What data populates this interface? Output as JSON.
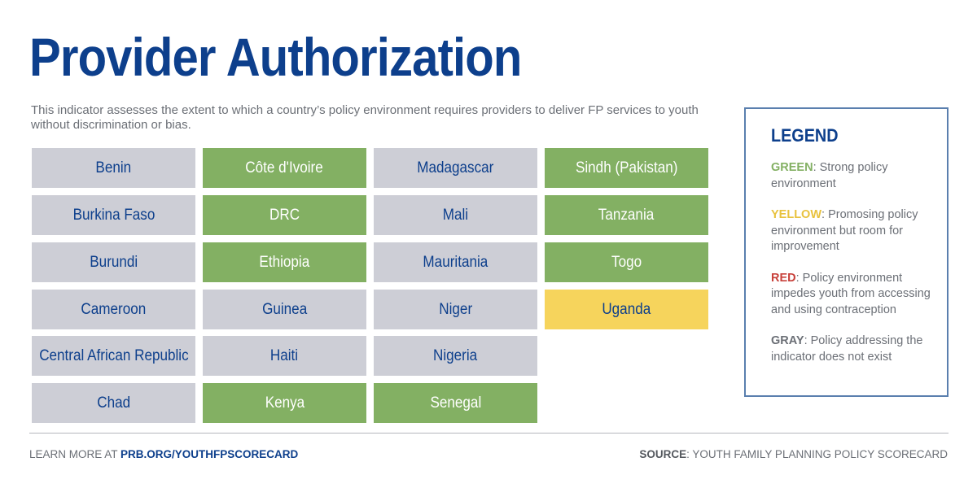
{
  "title": "Provider Authorization",
  "description": "This indicator assesses the extent to which a country’s policy environment requires providers to deliver FP services to youth without discrimination or bias.",
  "colors": {
    "green": "#83b063",
    "yellow": "#f6d45c",
    "gray": "#cdced6",
    "navy": "#0d3f8c",
    "red_label": "#c8413b"
  },
  "countries": {
    "col1": [
      {
        "name": "Benin",
        "status": "gray"
      },
      {
        "name": "Burkina Faso",
        "status": "gray"
      },
      {
        "name": "Burundi",
        "status": "gray"
      },
      {
        "name": "Cameroon",
        "status": "gray"
      },
      {
        "name": "Central African Republic",
        "status": "gray"
      },
      {
        "name": "Chad",
        "status": "gray"
      }
    ],
    "col2": [
      {
        "name": "Côte d'Ivoire",
        "status": "green"
      },
      {
        "name": "DRC",
        "status": "green"
      },
      {
        "name": "Ethiopia",
        "status": "green"
      },
      {
        "name": "Guinea",
        "status": "gray"
      },
      {
        "name": "Haiti",
        "status": "gray"
      },
      {
        "name": "Kenya",
        "status": "green"
      }
    ],
    "col3": [
      {
        "name": "Madagascar",
        "status": "gray"
      },
      {
        "name": "Mali",
        "status": "gray"
      },
      {
        "name": "Mauritania",
        "status": "gray"
      },
      {
        "name": "Niger",
        "status": "gray"
      },
      {
        "name": "Nigeria",
        "status": "gray"
      },
      {
        "name": "Senegal",
        "status": "green"
      }
    ],
    "col4": [
      {
        "name": "Sindh (Pakistan)",
        "status": "green"
      },
      {
        "name": "Tanzania",
        "status": "green"
      },
      {
        "name": "Togo",
        "status": "green"
      },
      {
        "name": "Uganda",
        "status": "yellow"
      }
    ]
  },
  "legend": {
    "title": "LEGEND",
    "green_key": "GREEN",
    "green_text": ": Strong policy environment",
    "yellow_key": "YELLOW",
    "yellow_text": ": Promosing policy environment but room for improvement",
    "red_key": "RED",
    "red_text": ": Policy environment impedes youth from accessing and using contraception",
    "gray_key": "GRAY",
    "gray_text": ": Policy addressing the indicator does not exist"
  },
  "footer": {
    "learn_prefix": "LEARN MORE AT ",
    "learn_link": "PRB.ORG/YOUTHFPSCORECARD",
    "source_key": "SOURCE",
    "source_text": ": YOUTH FAMILY PLANNING POLICY SCORECARD"
  }
}
